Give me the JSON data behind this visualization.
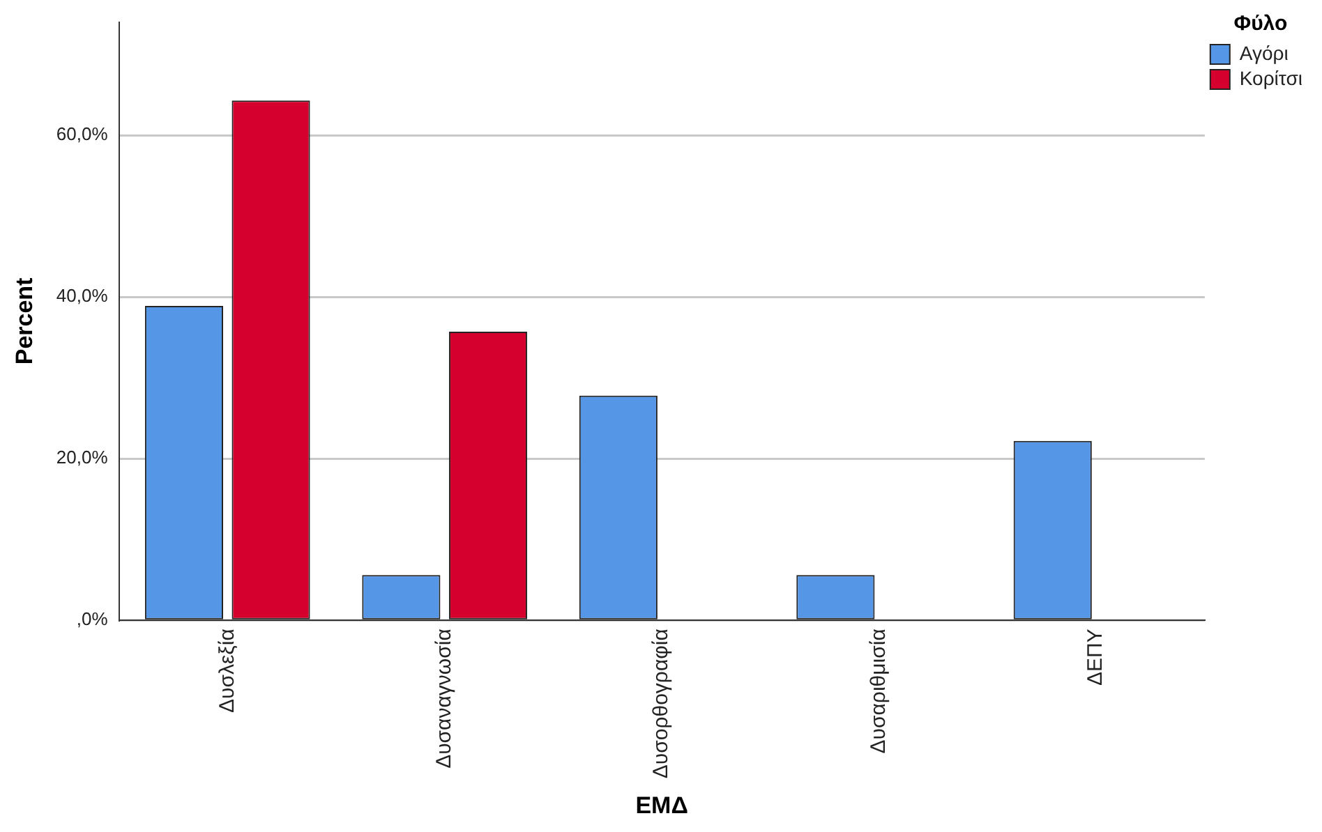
{
  "chart_data": {
    "type": "bar",
    "xlabel": "ΕΜΔ",
    "ylabel": "Percent",
    "legend_title": "Φύλο",
    "categories": [
      "Δυσλεξία",
      "Δυσαναγνωσία",
      "Δυσορθογραφία",
      "Δυσαριθμισία",
      "ΔΕΠΥ"
    ],
    "series": [
      {
        "name": "Αγόρι",
        "color": "#5596e6",
        "values": [
          38.9,
          5.6,
          27.8,
          5.6,
          22.2
        ]
      },
      {
        "name": "Κορίτσι",
        "color": "#d5002d",
        "values": [
          64.3,
          35.7,
          0,
          0,
          0
        ]
      }
    ],
    "ylim": [
      0,
      74
    ],
    "yticks": [
      {
        "value": 0,
        "label": ",0%"
      },
      {
        "value": 20,
        "label": "20,0%"
      },
      {
        "value": 40,
        "label": "40,0%"
      },
      {
        "value": 60,
        "label": "60,0%"
      }
    ],
    "grid": "y",
    "legend": "top right"
  }
}
